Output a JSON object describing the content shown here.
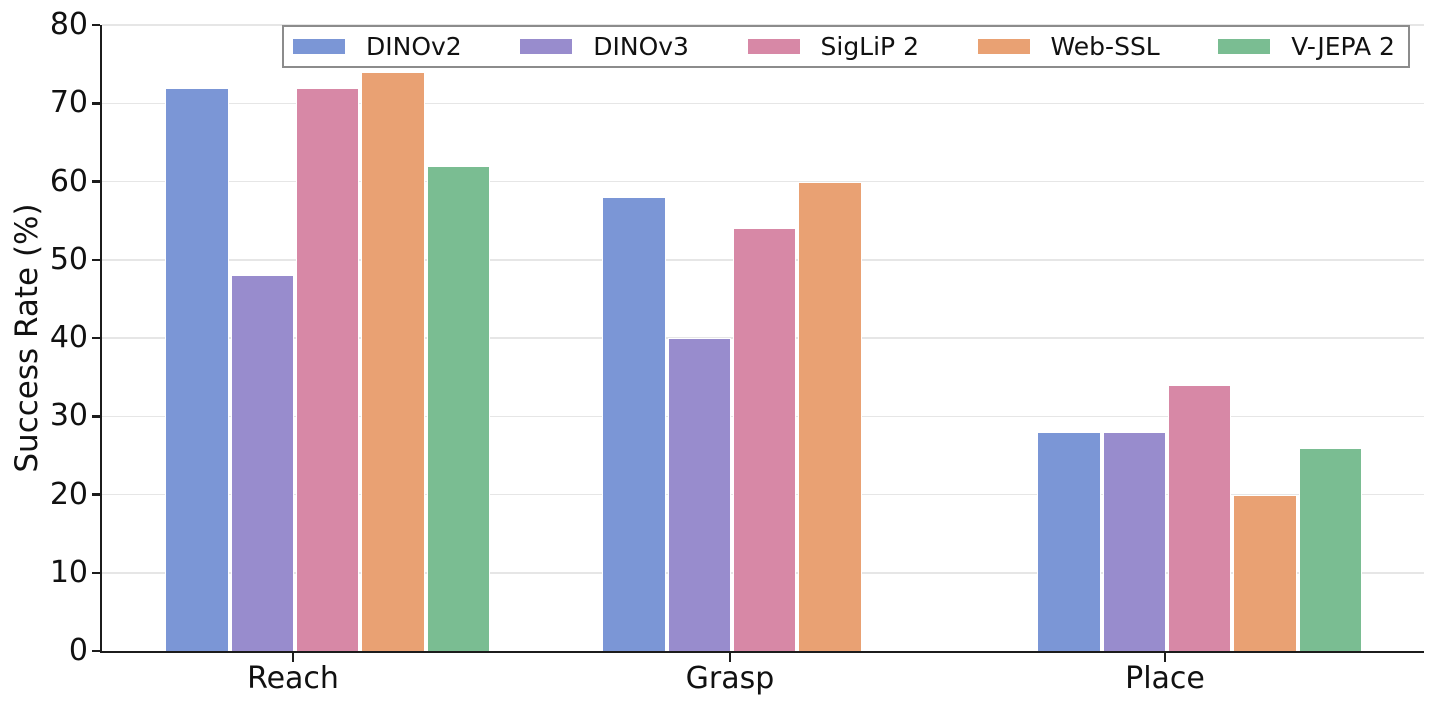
{
  "chart_data": {
    "type": "bar",
    "title": "",
    "categories": [
      "Reach",
      "Grasp",
      "Place"
    ],
    "series": [
      {
        "name": "DINOv2",
        "color": "#7b96d6",
        "values": [
          72,
          58,
          28
        ]
      },
      {
        "name": "DINOv3",
        "color": "#988ccd",
        "values": [
          48,
          40,
          28
        ]
      },
      {
        "name": "SigLiP 2",
        "color": "#d788a6",
        "values": [
          72,
          54,
          34
        ]
      },
      {
        "name": "Web-SSL",
        "color": "#e9a173",
        "values": [
          74,
          60,
          20
        ]
      },
      {
        "name": "V-JEPA 2",
        "color": "#7abd92",
        "values": [
          62,
          null,
          26
        ]
      }
    ],
    "xlabel": "",
    "ylabel": "Success Rate (%)",
    "ylim": [
      0,
      80
    ],
    "yticks": [
      0,
      10,
      20,
      30,
      40,
      50,
      60,
      70,
      80
    ],
    "grid": "horizontal",
    "legend_position": "top",
    "axis_color": "#1c1c1c",
    "gridline_color": "#e6e6e6",
    "legend_border_color": "#8c8c8c"
  }
}
